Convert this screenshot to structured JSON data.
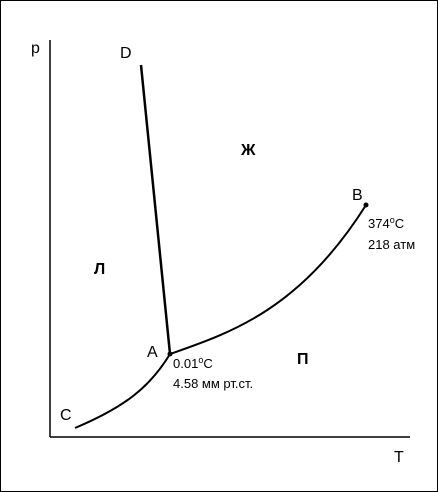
{
  "axes": {
    "y_label": "p",
    "x_label": "T"
  },
  "points": {
    "A": "A",
    "B": "B",
    "C": "C",
    "D": "D"
  },
  "regions": {
    "solid": "Л",
    "liquid": "Ж",
    "vapor": "П"
  },
  "triple_point": {
    "temperature_value": "0.01",
    "degree": "o",
    "temperature_unit": "C",
    "pressure": "4.58 мм рт.ст."
  },
  "critical_point": {
    "temperature_value": "374",
    "degree": "o",
    "temperature_unit": "C",
    "pressure": "218 атм"
  },
  "colors": {
    "ink": "#000000",
    "background": "#ffffff"
  }
}
